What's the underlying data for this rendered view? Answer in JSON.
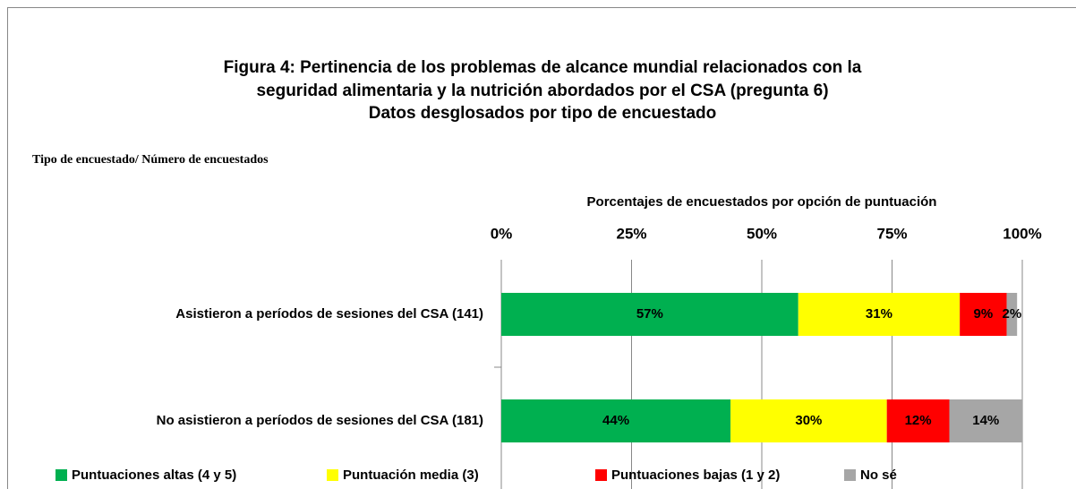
{
  "chart_data": {
    "type": "stacked_barh",
    "title": [
      "Figura 4: Pertinencia de los problemas de alcance mundial relacionados con la",
      "seguridad alimentaria y la nutrición abordados por el CSA (pregunta 6)",
      "Datos desglosados por tipo de encuestado"
    ],
    "y_label": "Tipo de encuestado/ Número de encuestados",
    "x_label": "Porcentajes de encuestados por opción de puntuación",
    "categories": [
      "Asistieron a períodos de sesiones del CSA (141)",
      "No asistieron a períodos de sesiones del CSA (181)"
    ],
    "series": [
      {
        "name": "Puntuaciones altas (4 y 5)",
        "color": "#00b050",
        "values": [
          57,
          44
        ],
        "value_labels": [
          "57%",
          "44%"
        ]
      },
      {
        "name": "Puntuación media (3)",
        "color": "#ffff00",
        "values": [
          31,
          30
        ],
        "value_labels": [
          "31%",
          "30%"
        ]
      },
      {
        "name": "Puntuaciones bajas (1 y 2)",
        "color": "#ff0000",
        "values": [
          9,
          12
        ],
        "value_labels": [
          "9%",
          "12%"
        ]
      },
      {
        "name": "No sé",
        "color": "#a6a6a6",
        "values": [
          2,
          14
        ],
        "value_labels": [
          "2%",
          "14%"
        ]
      }
    ],
    "xlim": [
      0,
      100
    ],
    "xticks": [
      {
        "value": 0,
        "label": "0%"
      },
      {
        "value": 25,
        "label": "25%"
      },
      {
        "value": 50,
        "label": "50%"
      },
      {
        "value": 75,
        "label": "75%"
      },
      {
        "value": 100,
        "label": "100%"
      }
    ],
    "grid": true,
    "legend": "bottom"
  }
}
